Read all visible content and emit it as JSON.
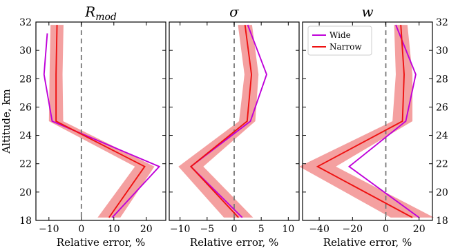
{
  "chart_data": [
    {
      "type": "line",
      "title": "R_mod",
      "title_main": "R",
      "title_sub": "mod",
      "xlabel": "Relative error, %",
      "ylabel": "Altitude, km",
      "xlim": [
        -14,
        26
      ],
      "ylim": [
        18,
        32
      ],
      "xticks": [
        -10,
        0,
        10,
        20
      ],
      "xtick_labels": [
        "−10",
        "0",
        "10",
        "20"
      ],
      "yticks": [
        18,
        20,
        22,
        24,
        26,
        28,
        30,
        32
      ],
      "y_axis_side": "left",
      "series": [
        {
          "name": "Wide",
          "color": "#bf00d9",
          "points": [
            [
              -10.5,
              31.2
            ],
            [
              -11.5,
              28.3
            ],
            [
              -9,
              25.0
            ],
            [
              24,
              21.8
            ],
            [
              9.5,
              18.2
            ]
          ]
        },
        {
          "name": "Narrow",
          "color": "#ee1111",
          "points": [
            [
              -7.5,
              31.8
            ],
            [
              -7.8,
              28.3
            ],
            [
              -7.8,
              25.0
            ],
            [
              19.5,
              21.8
            ],
            [
              8.5,
              18.2
            ]
          ]
        }
      ],
      "band": {
        "color": "#f4a0a0",
        "points": [
          [
            -7.5,
            31.8,
            2.0
          ],
          [
            -7.8,
            28.3,
            2.0
          ],
          [
            -7.8,
            25.0,
            2.2
          ],
          [
            19.5,
            21.8,
            3.0
          ],
          [
            8.5,
            18.2,
            3.5
          ]
        ]
      }
    },
    {
      "type": "line",
      "title": "σ",
      "xlabel": "Relative error, %",
      "xlim": [
        -12,
        12
      ],
      "ylim": [
        18,
        32
      ],
      "xticks": [
        -10,
        -5,
        0,
        5,
        10
      ],
      "xtick_labels": [
        "−10",
        "−5",
        "0",
        "5",
        "10"
      ],
      "yticks": [
        18,
        20,
        22,
        24,
        26,
        28,
        30,
        32
      ],
      "y_axis_side": "none",
      "series": [
        {
          "name": "Wide",
          "color": "#bf00d9",
          "points": [
            [
              2.5,
              31.8
            ],
            [
              6,
              28.3
            ],
            [
              3,
              25.0
            ],
            [
              -8,
              21.8
            ],
            [
              1.5,
              18.2
            ]
          ]
        },
        {
          "name": "Narrow",
          "color": "#ee1111",
          "points": [
            [
              2.0,
              31.8
            ],
            [
              3.2,
              28.3
            ],
            [
              2.4,
              25.0
            ],
            [
              -8,
              21.8
            ],
            [
              0.8,
              18.2
            ]
          ]
        }
      ],
      "band": {
        "color": "#f4a0a0",
        "points": [
          [
            2.0,
            31.8,
            1.3
          ],
          [
            3.2,
            28.3,
            1.3
          ],
          [
            2.4,
            25.0,
            1.5
          ],
          [
            -8,
            21.8,
            2.3
          ],
          [
            0.8,
            18.2,
            2.7
          ]
        ]
      }
    },
    {
      "type": "line",
      "title": "w",
      "xlabel": "Relative error, %",
      "xlim": [
        -50,
        28
      ],
      "ylim": [
        18,
        32
      ],
      "xticks": [
        -40,
        -20,
        0,
        20
      ],
      "xtick_labels": [
        "−40",
        "−20",
        "0",
        "20"
      ],
      "yticks": [
        18,
        20,
        22,
        24,
        26,
        28,
        30,
        32
      ],
      "y_axis_side": "right",
      "legend": {
        "position": "upper-left",
        "entries": [
          "Wide",
          "Narrow"
        ]
      },
      "series": [
        {
          "name": "Wide",
          "color": "#bf00d9",
          "points": [
            [
              6,
              31.8
            ],
            [
              18,
              28.3
            ],
            [
              12,
              25.0
            ],
            [
              -22,
              21.8
            ],
            [
              20,
              18.2
            ]
          ]
        },
        {
          "name": "Narrow",
          "color": "#ee1111",
          "points": [
            [
              9,
              31.8
            ],
            [
              11,
              28.3
            ],
            [
              10,
              25.0
            ],
            [
              -41,
              21.8
            ],
            [
              16,
              18.2
            ]
          ]
        }
      ],
      "band": {
        "color": "#f4a0a0",
        "points": [
          [
            9,
            31.8,
            4
          ],
          [
            11,
            28.3,
            5
          ],
          [
            10,
            25.0,
            6
          ],
          [
            -41,
            21.8,
            11
          ],
          [
            16,
            18.2,
            13
          ]
        ]
      }
    }
  ]
}
